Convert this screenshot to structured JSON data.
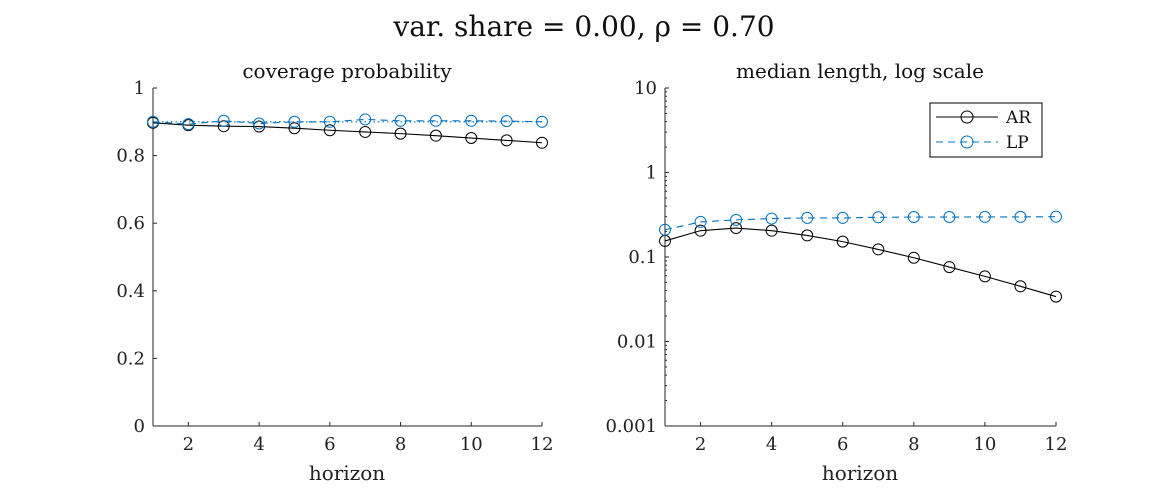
{
  "figure": {
    "title": "var. share = 0.00, ρ = 0.70"
  },
  "colors": {
    "AR": "#000000",
    "LP": "#0072BD"
  },
  "chart_data": [
    {
      "type": "line",
      "title": "coverage probability",
      "xlabel": "horizon",
      "ylabel": "",
      "xlim": [
        1,
        12
      ],
      "ylim": [
        0,
        1
      ],
      "yscale": "linear",
      "xticks": [
        2,
        4,
        6,
        8,
        10,
        12
      ],
      "yticks": [
        0,
        0.2,
        0.4,
        0.6,
        0.8,
        1
      ],
      "ytick_labels": [
        "0",
        "0.2",
        "0.4",
        "0.6",
        "0.8",
        "1"
      ],
      "x": [
        1,
        2,
        3,
        4,
        5,
        6,
        7,
        8,
        9,
        10,
        11,
        12
      ],
      "series": [
        {
          "name": "AR",
          "style": "solid",
          "marker": "circle",
          "values": [
            0.897,
            0.89,
            0.887,
            0.886,
            0.881,
            0.875,
            0.87,
            0.865,
            0.859,
            0.852,
            0.845,
            0.838
          ]
        },
        {
          "name": "LP",
          "style": "dashed",
          "marker": "circle",
          "values": [
            0.9,
            0.893,
            0.903,
            0.895,
            0.9,
            0.9,
            0.907,
            0.903,
            0.903,
            0.903,
            0.902,
            0.9
          ]
        },
        {
          "name": "",
          "style": "dotted",
          "marker": "none",
          "values": [
            0.9,
            0.9,
            0.9,
            0.9,
            0.9,
            0.9,
            0.9,
            0.9,
            0.9,
            0.9,
            0.9,
            0.9
          ]
        }
      ],
      "grid": false,
      "legend": null
    },
    {
      "type": "line",
      "title": "median length, log scale",
      "xlabel": "horizon",
      "ylabel": "",
      "xlim": [
        1,
        12
      ],
      "ylim": [
        0.001,
        10
      ],
      "yscale": "log",
      "xticks": [
        2,
        4,
        6,
        8,
        10,
        12
      ],
      "yticks": [
        0.001,
        0.01,
        0.1,
        1,
        10
      ],
      "ytick_labels": [
        "0.001",
        "0.01",
        "0.1",
        "1",
        "10"
      ],
      "x": [
        1,
        2,
        3,
        4,
        5,
        6,
        7,
        8,
        9,
        10,
        11,
        12
      ],
      "series": [
        {
          "name": "AR",
          "style": "solid",
          "marker": "circle",
          "values": [
            0.155,
            0.205,
            0.22,
            0.205,
            0.18,
            0.152,
            0.123,
            0.098,
            0.076,
            0.059,
            0.045,
            0.034
          ]
        },
        {
          "name": "LP",
          "style": "dashed",
          "marker": "circle",
          "values": [
            0.21,
            0.26,
            0.275,
            0.285,
            0.29,
            0.29,
            0.295,
            0.297,
            0.297,
            0.298,
            0.298,
            0.3
          ]
        }
      ],
      "grid": false,
      "legend": "top-right"
    }
  ]
}
